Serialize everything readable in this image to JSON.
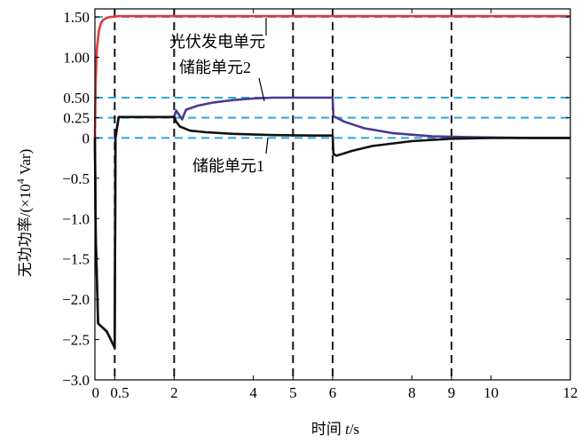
{
  "chart_data": {
    "type": "line",
    "xlabel_parts": [
      "时间 ",
      "t",
      "/s"
    ],
    "ylabel_parts": [
      "无功功率/(×10",
      "4",
      " Var)"
    ],
    "xlim": [
      0,
      12
    ],
    "ylim": [
      -3.0,
      1.6
    ],
    "x_ticks": [
      {
        "value": 0,
        "label": "0"
      },
      {
        "value": 0.5,
        "label": "0.5"
      },
      {
        "value": 2,
        "label": "2"
      },
      {
        "value": 4,
        "label": "4"
      },
      {
        "value": 5,
        "label": "5"
      },
      {
        "value": 6,
        "label": "6"
      },
      {
        "value": 8,
        "label": "8"
      },
      {
        "value": 9,
        "label": "9"
      },
      {
        "value": 10,
        "label": "10"
      },
      {
        "value": 12,
        "label": "12"
      }
    ],
    "y_ticks": [
      {
        "value": 1.5,
        "label": "1.50"
      },
      {
        "value": 1.0,
        "label": "1.00"
      },
      {
        "value": 0.5,
        "label": "0.50"
      },
      {
        "value": 0.25,
        "label": "0.25"
      },
      {
        "value": 0,
        "label": "0"
      },
      {
        "value": -0.5,
        "label": "−0.5"
      },
      {
        "value": -1.0,
        "label": "−1.0"
      },
      {
        "value": -1.5,
        "label": "−1.5"
      },
      {
        "value": -2.0,
        "label": "−2.0"
      },
      {
        "value": -2.5,
        "label": "−2.5"
      },
      {
        "value": -3.0,
        "label": "−3.0"
      }
    ],
    "reference_lines_y": [
      1.5,
      0.5,
      0.25,
      0
    ],
    "reference_lines_x": [
      0.5,
      2,
      5,
      6,
      9
    ],
    "colors": {
      "pv": "#e03a3a",
      "storage1": "#111111",
      "storage2": "#4a3a8e",
      "ref_h": "#2aa8d8",
      "ref_v": "#111111"
    },
    "series": [
      {
        "name": "光伏发电单元",
        "color_key": "pv",
        "x": [
          0,
          0.02,
          0.05,
          0.1,
          0.15,
          0.2,
          0.3,
          0.4,
          0.6,
          1.0,
          2,
          4,
          6,
          8,
          10,
          12
        ],
        "y": [
          0,
          0.7,
          1.1,
          1.33,
          1.42,
          1.46,
          1.49,
          1.5,
          1.51,
          1.51,
          1.51,
          1.51,
          1.51,
          1.51,
          1.51,
          1.51
        ]
      },
      {
        "name": "储能单元1",
        "color_key": "storage1",
        "x": [
          0,
          0.02,
          0.08,
          0.3,
          0.5,
          0.52,
          0.6,
          1.0,
          2.0,
          2.05,
          2.15,
          2.4,
          2.8,
          3.5,
          4.5,
          5.5,
          6.0,
          6.02,
          6.1,
          6.5,
          7.0,
          8.0,
          9.0,
          10,
          11,
          12
        ],
        "y": [
          0,
          -1.2,
          -2.3,
          -2.4,
          -2.6,
          0.0,
          0.26,
          0.26,
          0.26,
          0.2,
          0.14,
          0.09,
          0.07,
          0.05,
          0.035,
          0.03,
          0.03,
          -0.2,
          -0.22,
          -0.16,
          -0.1,
          -0.04,
          -0.01,
          0.0,
          0.0,
          0.0
        ]
      },
      {
        "name": "储能单元2",
        "color_key": "storage2",
        "x": [
          0,
          0.02,
          0.08,
          0.3,
          0.5,
          0.52,
          0.6,
          1.0,
          2.0,
          2.05,
          2.2,
          2.3,
          2.6,
          3.0,
          3.5,
          4.0,
          4.5,
          5.0,
          5.5,
          6.0,
          6.02,
          6.3,
          6.8,
          7.5,
          8.5,
          9.5,
          10,
          11,
          12
        ],
        "y": [
          0,
          -1.2,
          -2.3,
          -2.4,
          -2.6,
          0.0,
          0.26,
          0.26,
          0.26,
          0.34,
          0.23,
          0.35,
          0.4,
          0.44,
          0.47,
          0.49,
          0.5,
          0.5,
          0.5,
          0.5,
          0.27,
          0.2,
          0.12,
          0.06,
          0.02,
          0.01,
          0.005,
          0.0,
          0.0
        ]
      }
    ],
    "annotations": [
      {
        "text": "光伏发电单元",
        "series": "pv",
        "at": [
          4.5,
          1.51
        ]
      },
      {
        "text": "储能单元2",
        "series": "storage2",
        "at": [
          4.5,
          0.49
        ]
      },
      {
        "text": "储能单元1",
        "series": "storage1",
        "at": [
          4.5,
          0.035
        ]
      }
    ]
  }
}
